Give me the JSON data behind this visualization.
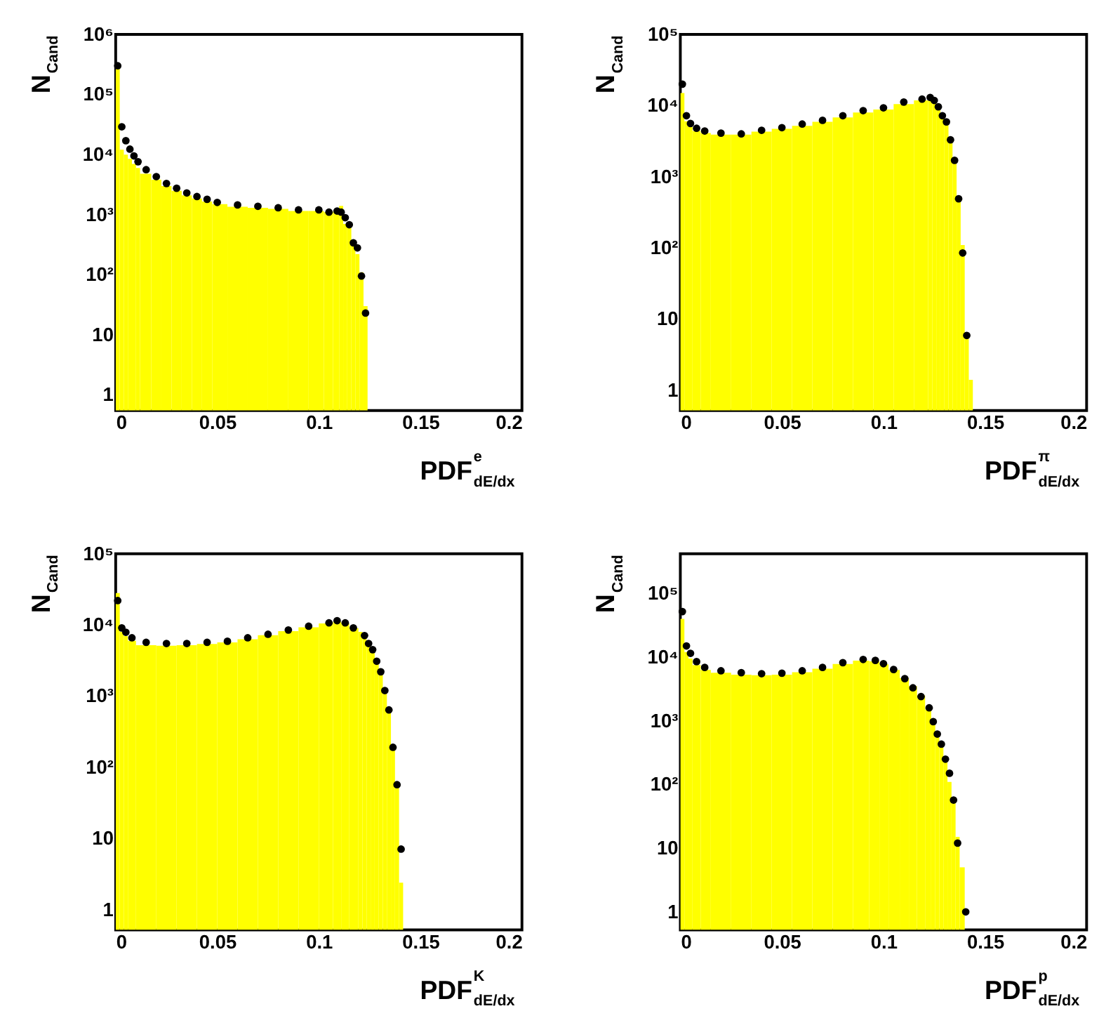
{
  "chart_data": [
    {
      "type": "histogram",
      "xlabel": "PDF$^{e}$$_{dE/dx}$",
      "ylabel": "N$_{Cand}$",
      "log": true,
      "marker": "circle",
      "xlim": [
        0,
        0.2
      ],
      "xticks": [
        0,
        0.05,
        0.1,
        0.15,
        0.2
      ],
      "ylim": [
        0.55,
        1000000
      ],
      "yticks": [
        1,
        10,
        {
          "value": 100,
          "label": "10²"
        },
        {
          "value": 1000,
          "label": "10³"
        },
        {
          "value": 10000,
          "label": "10⁴"
        },
        {
          "value": 100000,
          "label": "10⁵"
        },
        {
          "value": 1000000,
          "label": "10⁶"
        }
      ],
      "series": [
        {
          "color": "#ffff00",
          "bins": [
            0,
            0.002,
            0.004,
            0.006,
            0.008,
            0.01,
            0.012,
            0.0175,
            0.0225,
            0.0275,
            0.0325,
            0.0375,
            0.0425,
            0.0475,
            0.055,
            0.065,
            0.075,
            0.085,
            0.095,
            0.1025,
            0.107,
            0.11,
            0.112,
            0.114,
            0.116,
            0.118,
            0.12,
            0.122,
            0.124
          ],
          "values": [
            280000,
            12000,
            10000,
            8500,
            7000,
            6000,
            4800,
            3800,
            3000,
            2500,
            2100,
            1850,
            1650,
            1500,
            1350,
            1300,
            1250,
            1150,
            1150,
            1100,
            1150,
            1400,
            700,
            700,
            350,
            220,
            110,
            30
          ]
        },
        {
          "type": "scatter",
          "color": "#000000",
          "x": [
            0.001,
            0.003,
            0.005,
            0.007,
            0.009,
            0.011,
            0.015,
            0.02,
            0.025,
            0.03,
            0.035,
            0.04,
            0.045,
            0.05,
            0.06,
            0.07,
            0.08,
            0.09,
            0.1,
            0.105,
            0.109,
            0.111,
            0.113,
            0.115,
            0.117,
            0.119,
            0.121,
            0.123
          ],
          "values": [
            300000,
            29000,
            17000,
            12300,
            9500,
            7600,
            5600,
            4300,
            3300,
            2750,
            2300,
            2000,
            1800,
            1600,
            1450,
            1380,
            1300,
            1200,
            1200,
            1100,
            1150,
            1100,
            890,
            680,
            340,
            280,
            95,
            23
          ]
        }
      ]
    },
    {
      "type": "histogram",
      "xlabel": "PDF$^{π}$$_{dE/dx}$",
      "ylabel": "N$_{Cand}$",
      "log": true,
      "marker": "circle",
      "xlim": [
        0,
        0.2
      ],
      "xticks": [
        0,
        0.05,
        0.1,
        0.15,
        0.2
      ],
      "ylim": [
        0.52,
        100000
      ],
      "yticks": [
        1,
        10,
        {
          "value": 100,
          "label": "10²"
        },
        {
          "value": 1000,
          "label": "10³"
        },
        {
          "value": 10000,
          "label": "10⁴"
        },
        {
          "value": 100000,
          "label": "10⁵"
        }
      ],
      "series": [
        {
          "color": "#ffff00",
          "bins": [
            0,
            0.002,
            0.004,
            0.006,
            0.01,
            0.015,
            0.025,
            0.035,
            0.045,
            0.055,
            0.065,
            0.075,
            0.085,
            0.095,
            0.105,
            0.115,
            0.122,
            0.124,
            0.126,
            0.128,
            0.13,
            0.132,
            0.134,
            0.136,
            0.138,
            0.14,
            0.142,
            0.144
          ],
          "values": [
            15000,
            6000,
            5000,
            4400,
            4100,
            3900,
            3900,
            4300,
            4700,
            5200,
            5900,
            6800,
            8000,
            8800,
            10500,
            11800,
            12500,
            11000,
            9000,
            7000,
            5500,
            3200,
            1600,
            500,
            110,
            6,
            1.4
          ]
        },
        {
          "type": "scatter",
          "color": "#000000",
          "x": [
            0.001,
            0.003,
            0.005,
            0.008,
            0.012,
            0.02,
            0.03,
            0.04,
            0.05,
            0.06,
            0.07,
            0.08,
            0.09,
            0.1,
            0.11,
            0.119,
            0.123,
            0.125,
            0.127,
            0.129,
            0.131,
            0.133,
            0.135,
            0.137,
            0.139,
            0.141
          ],
          "values": [
            20000,
            7200,
            5600,
            4800,
            4400,
            4100,
            4000,
            4500,
            4900,
            5500,
            6200,
            7200,
            8500,
            9300,
            11200,
            12300,
            13000,
            11800,
            9600,
            7200,
            5900,
            3300,
            1700,
            490,
            85,
            5.9
          ]
        }
      ]
    },
    {
      "type": "histogram",
      "xlabel": "PDF$^{K}$$_{dE/dx}$",
      "ylabel": "N$_{Cand}$",
      "log": true,
      "marker": "circle",
      "xlim": [
        0,
        0.2
      ],
      "xticks": [
        0,
        0.05,
        0.1,
        0.15,
        0.2
      ],
      "ylim": [
        0.52,
        100000
      ],
      "yticks": [
        1,
        10,
        {
          "value": 100,
          "label": "10²"
        },
        {
          "value": 1000,
          "label": "10³"
        },
        {
          "value": 10000,
          "label": "10⁴"
        },
        {
          "value": 100000,
          "label": "10⁵"
        }
      ],
      "series": [
        {
          "color": "#ffff00",
          "bins": [
            0,
            0.002,
            0.004,
            0.006,
            0.01,
            0.02,
            0.03,
            0.04,
            0.05,
            0.06,
            0.07,
            0.08,
            0.09,
            0.1,
            0.107,
            0.111,
            0.115,
            0.1195,
            0.1215,
            0.1235,
            0.1255,
            0.1275,
            0.1295,
            0.1315,
            0.1335,
            0.1355,
            0.1375,
            0.1395,
            0.1415
          ],
          "values": [
            28000,
            8000,
            7000,
            6000,
            5200,
            5100,
            5200,
            5400,
            5700,
            6300,
            7200,
            8200,
            9300,
            10500,
            11200,
            10500,
            9000,
            8000,
            6800,
            5300,
            4200,
            3000,
            2100,
            1200,
            650,
            200,
            60,
            2.4
          ]
        },
        {
          "type": "scatter",
          "color": "#000000",
          "x": [
            0.001,
            0.003,
            0.005,
            0.008,
            0.015,
            0.025,
            0.035,
            0.045,
            0.055,
            0.065,
            0.075,
            0.085,
            0.095,
            0.105,
            0.109,
            0.113,
            0.117,
            0.1225,
            0.1245,
            0.1265,
            0.1285,
            0.1305,
            0.1325,
            0.1345,
            0.1365,
            0.1385,
            0.1405
          ],
          "values": [
            22000,
            9100,
            7900,
            6600,
            5700,
            5500,
            5500,
            5700,
            5900,
            6600,
            7400,
            8500,
            9600,
            10700,
            11500,
            10700,
            9100,
            7100,
            5500,
            4500,
            3100,
            2200,
            1200,
            640,
            191,
            57,
            7.1
          ]
        }
      ]
    },
    {
      "type": "histogram",
      "xlabel": "PDF$^{p}$$_{dE/dx}$",
      "ylabel": "N$_{Cand}$",
      "log": true,
      "marker": "circle",
      "xlim": [
        0,
        0.2
      ],
      "xticks": [
        0,
        0.05,
        0.1,
        0.15,
        0.2
      ],
      "ylim": [
        0.52,
        420000
      ],
      "yticks": [
        1,
        10,
        {
          "value": 100,
          "label": "10²"
        },
        {
          "value": 1000,
          "label": "10³"
        },
        {
          "value": 10000,
          "label": "10⁴"
        },
        {
          "value": 100000,
          "label": "10⁵"
        }
      ],
      "series": [
        {
          "color": "#ffff00",
          "bins": [
            0,
            0.002,
            0.004,
            0.006,
            0.01,
            0.015,
            0.025,
            0.035,
            0.045,
            0.055,
            0.065,
            0.075,
            0.085,
            0.093,
            0.098,
            0.1025,
            0.108,
            0.1125,
            0.1165,
            0.1205,
            0.1235,
            0.1255,
            0.1275,
            0.1295,
            0.1315,
            0.1335,
            0.1355,
            0.1375,
            0.14
          ],
          "values": [
            40000,
            12000,
            9500,
            7500,
            6300,
            5700,
            5300,
            5200,
            5300,
            5800,
            6600,
            7800,
            8800,
            8600,
            7700,
            6300,
            4700,
            3500,
            2500,
            1500,
            950,
            650,
            420,
            260,
            110,
            60,
            15,
            5
          ]
        },
        {
          "type": "scatter",
          "color": "#000000",
          "x": [
            0.001,
            0.003,
            0.005,
            0.008,
            0.012,
            0.02,
            0.03,
            0.04,
            0.05,
            0.06,
            0.07,
            0.08,
            0.09,
            0.096,
            0.1,
            0.105,
            0.1105,
            0.1145,
            0.1185,
            0.1225,
            0.1245,
            0.1265,
            0.1285,
            0.1305,
            0.1325,
            0.1345,
            0.1365,
            0.1405
          ],
          "values": [
            52000,
            15000,
            11500,
            8500,
            6900,
            6100,
            5700,
            5500,
            5600,
            6100,
            6900,
            8200,
            9200,
            8900,
            7900,
            6400,
            4600,
            3300,
            2400,
            1600,
            970,
            620,
            430,
            250,
            150,
            57,
            12,
            1.0
          ]
        }
      ]
    }
  ]
}
